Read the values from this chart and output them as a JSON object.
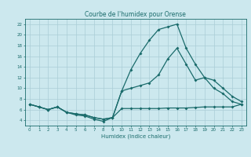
{
  "title": "Courbe de l'humidex pour Orense",
  "xlabel": "Humidex (Indice chaleur)",
  "background_color": "#cce8ee",
  "grid_color": "#aacdd6",
  "line_color": "#1a6b6b",
  "xlim": [
    -0.5,
    23.5
  ],
  "ylim": [
    3.0,
    23.0
  ],
  "xticks": [
    0,
    1,
    2,
    3,
    4,
    5,
    6,
    7,
    8,
    9,
    10,
    11,
    12,
    13,
    14,
    15,
    16,
    17,
    18,
    19,
    20,
    21,
    22,
    23
  ],
  "yticks": [
    4,
    6,
    8,
    10,
    12,
    14,
    16,
    18,
    20,
    22
  ],
  "line1_x": [
    0,
    1,
    2,
    3,
    4,
    5,
    6,
    7,
    8,
    9,
    10,
    11,
    12,
    13,
    14,
    15,
    16,
    17,
    18,
    19,
    20,
    21,
    22,
    23
  ],
  "line1_y": [
    7.0,
    6.5,
    6.0,
    6.5,
    5.5,
    5.0,
    4.8,
    4.2,
    3.8,
    4.5,
    6.2,
    6.2,
    6.2,
    6.2,
    6.2,
    6.3,
    6.3,
    6.3,
    6.4,
    6.5,
    6.5,
    6.5,
    6.5,
    7.0
  ],
  "line2_x": [
    0,
    1,
    2,
    3,
    4,
    5,
    6,
    7,
    8,
    9,
    10,
    11,
    12,
    13,
    14,
    15,
    16,
    17,
    18,
    19,
    20,
    21,
    22,
    23
  ],
  "line2_y": [
    7.0,
    6.5,
    6.0,
    6.5,
    5.5,
    5.2,
    5.0,
    4.5,
    4.2,
    4.5,
    9.5,
    10.0,
    10.5,
    11.0,
    12.5,
    15.5,
    17.5,
    14.5,
    11.5,
    12.0,
    10.0,
    9.0,
    7.5,
    7.0
  ],
  "line3_x": [
    0,
    1,
    2,
    3,
    4,
    5,
    6,
    7,
    8,
    9,
    10,
    11,
    12,
    13,
    14,
    15,
    16,
    17,
    18,
    19,
    20,
    21,
    22,
    23
  ],
  "line3_y": [
    7.0,
    6.5,
    6.0,
    6.5,
    5.5,
    5.2,
    5.0,
    4.5,
    4.2,
    4.5,
    9.5,
    13.5,
    16.5,
    19.0,
    21.0,
    21.5,
    22.0,
    17.5,
    14.5,
    12.0,
    11.5,
    10.0,
    8.5,
    7.5
  ]
}
